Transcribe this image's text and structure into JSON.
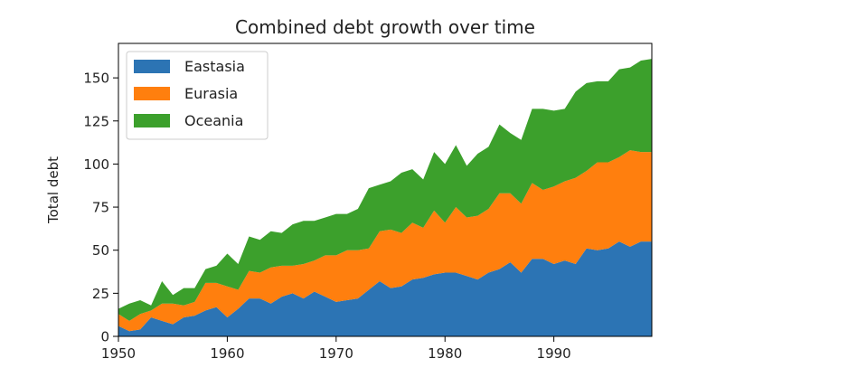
{
  "chart_data": {
    "type": "area",
    "stacked": true,
    "title": "Combined debt growth over time",
    "xlabel": "",
    "ylabel": "Total debt",
    "xlim": [
      1950,
      1999
    ],
    "ylim": [
      0,
      170
    ],
    "xticks": [
      1950,
      1960,
      1970,
      1980,
      1990
    ],
    "yticks": [
      0,
      25,
      50,
      75,
      100,
      125,
      150
    ],
    "grid": false,
    "legend_position": "top-left",
    "x": [
      1950,
      1951,
      1952,
      1953,
      1954,
      1955,
      1956,
      1957,
      1958,
      1959,
      1960,
      1961,
      1962,
      1963,
      1964,
      1965,
      1966,
      1967,
      1968,
      1969,
      1970,
      1971,
      1972,
      1973,
      1974,
      1975,
      1976,
      1977,
      1978,
      1979,
      1980,
      1981,
      1982,
      1983,
      1984,
      1985,
      1986,
      1987,
      1988,
      1989,
      1990,
      1991,
      1992,
      1993,
      1994,
      1995,
      1996,
      1997,
      1998,
      1999
    ],
    "series": [
      {
        "name": "Eastasia",
        "color": "#2c74b4",
        "values": [
          6,
          3,
          4,
          11,
          9,
          7,
          11,
          12,
          15,
          17,
          11,
          16,
          22,
          22,
          19,
          23,
          25,
          22,
          26,
          23,
          20,
          21,
          22,
          27,
          32,
          28,
          29,
          33,
          34,
          36,
          37,
          37,
          35,
          33,
          37,
          39,
          43,
          37,
          45,
          45,
          42,
          44,
          42,
          51,
          50,
          51,
          55,
          52,
          55,
          55
        ]
      },
      {
        "name": "Eurasia",
        "color": "#ff7f0e",
        "values": [
          7,
          6,
          9,
          4,
          10,
          12,
          7,
          8,
          16,
          14,
          18,
          11,
          16,
          15,
          21,
          18,
          16,
          20,
          18,
          24,
          27,
          29,
          28,
          24,
          29,
          34,
          31,
          33,
          29,
          37,
          29,
          38,
          34,
          37,
          37,
          44,
          40,
          40,
          44,
          40,
          45,
          46,
          50,
          45,
          51,
          50,
          49,
          56,
          52,
          52
        ]
      },
      {
        "name": "Oceania",
        "color": "#3ca02c",
        "values": [
          3,
          10,
          8,
          3,
          13,
          5,
          10,
          8,
          8,
          10,
          19,
          15,
          20,
          19,
          21,
          19,
          24,
          25,
          23,
          22,
          24,
          21,
          24,
          35,
          27,
          28,
          35,
          31,
          28,
          34,
          34,
          36,
          30,
          36,
          36,
          40,
          35,
          37,
          43,
          47,
          44,
          42,
          50,
          51,
          47,
          47,
          51,
          48,
          53,
          54
        ]
      }
    ]
  }
}
